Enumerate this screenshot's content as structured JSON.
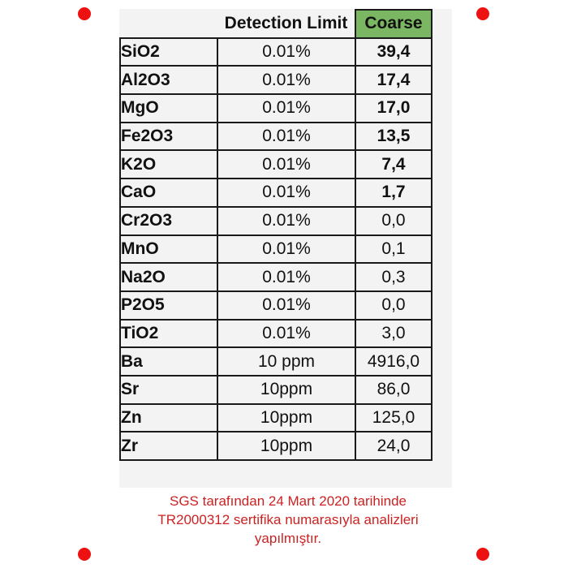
{
  "table": {
    "headers": [
      "",
      "Detection Limit",
      "Coarse"
    ],
    "header_color": "#7bb662",
    "rows": [
      {
        "param": "SiO2",
        "limit": "0.01%",
        "value": "39,4",
        "bold": true
      },
      {
        "param": "Al2O3",
        "limit": "0.01%",
        "value": "17,4",
        "bold": true
      },
      {
        "param": "MgO",
        "limit": "0.01%",
        "value": "17,0",
        "bold": true
      },
      {
        "param": "Fe2O3",
        "limit": "0.01%",
        "value": "13,5",
        "bold": true
      },
      {
        "param": "K2O",
        "limit": "0.01%",
        "value": "7,4",
        "bold": true
      },
      {
        "param": "CaO",
        "limit": "0.01%",
        "value": "1,7",
        "bold": true
      },
      {
        "param": "Cr2O3",
        "limit": "0.01%",
        "value": "0,0",
        "bold": false
      },
      {
        "param": "MnO",
        "limit": "0.01%",
        "value": "0,1",
        "bold": false
      },
      {
        "param": "Na2O",
        "limit": "0.01%",
        "value": "0,3",
        "bold": false
      },
      {
        "param": "P2O5",
        "limit": "0.01%",
        "value": "0,0",
        "bold": false
      },
      {
        "param": "TiO2",
        "limit": "0.01%",
        "value": "3,0",
        "bold": false
      },
      {
        "param": "Ba",
        "limit": "10 ppm",
        "value": "4916,0",
        "bold": false
      },
      {
        "param": "Sr",
        "limit": "10ppm",
        "value": "86,0",
        "bold": false
      },
      {
        "param": "Zn",
        "limit": "10ppm",
        "value": "125,0",
        "bold": false
      },
      {
        "param": "Zr",
        "limit": "10ppm",
        "value": "24,0",
        "bold": false
      }
    ]
  },
  "note": {
    "lines": [
      "SGS tarafından 24 Mart 2020 tarihinde",
      "TR2000312 sertifika numarasıyla analizleri",
      "yapılmıştır."
    ],
    "color": "#cc2222"
  },
  "dot_color": "#ee1111"
}
